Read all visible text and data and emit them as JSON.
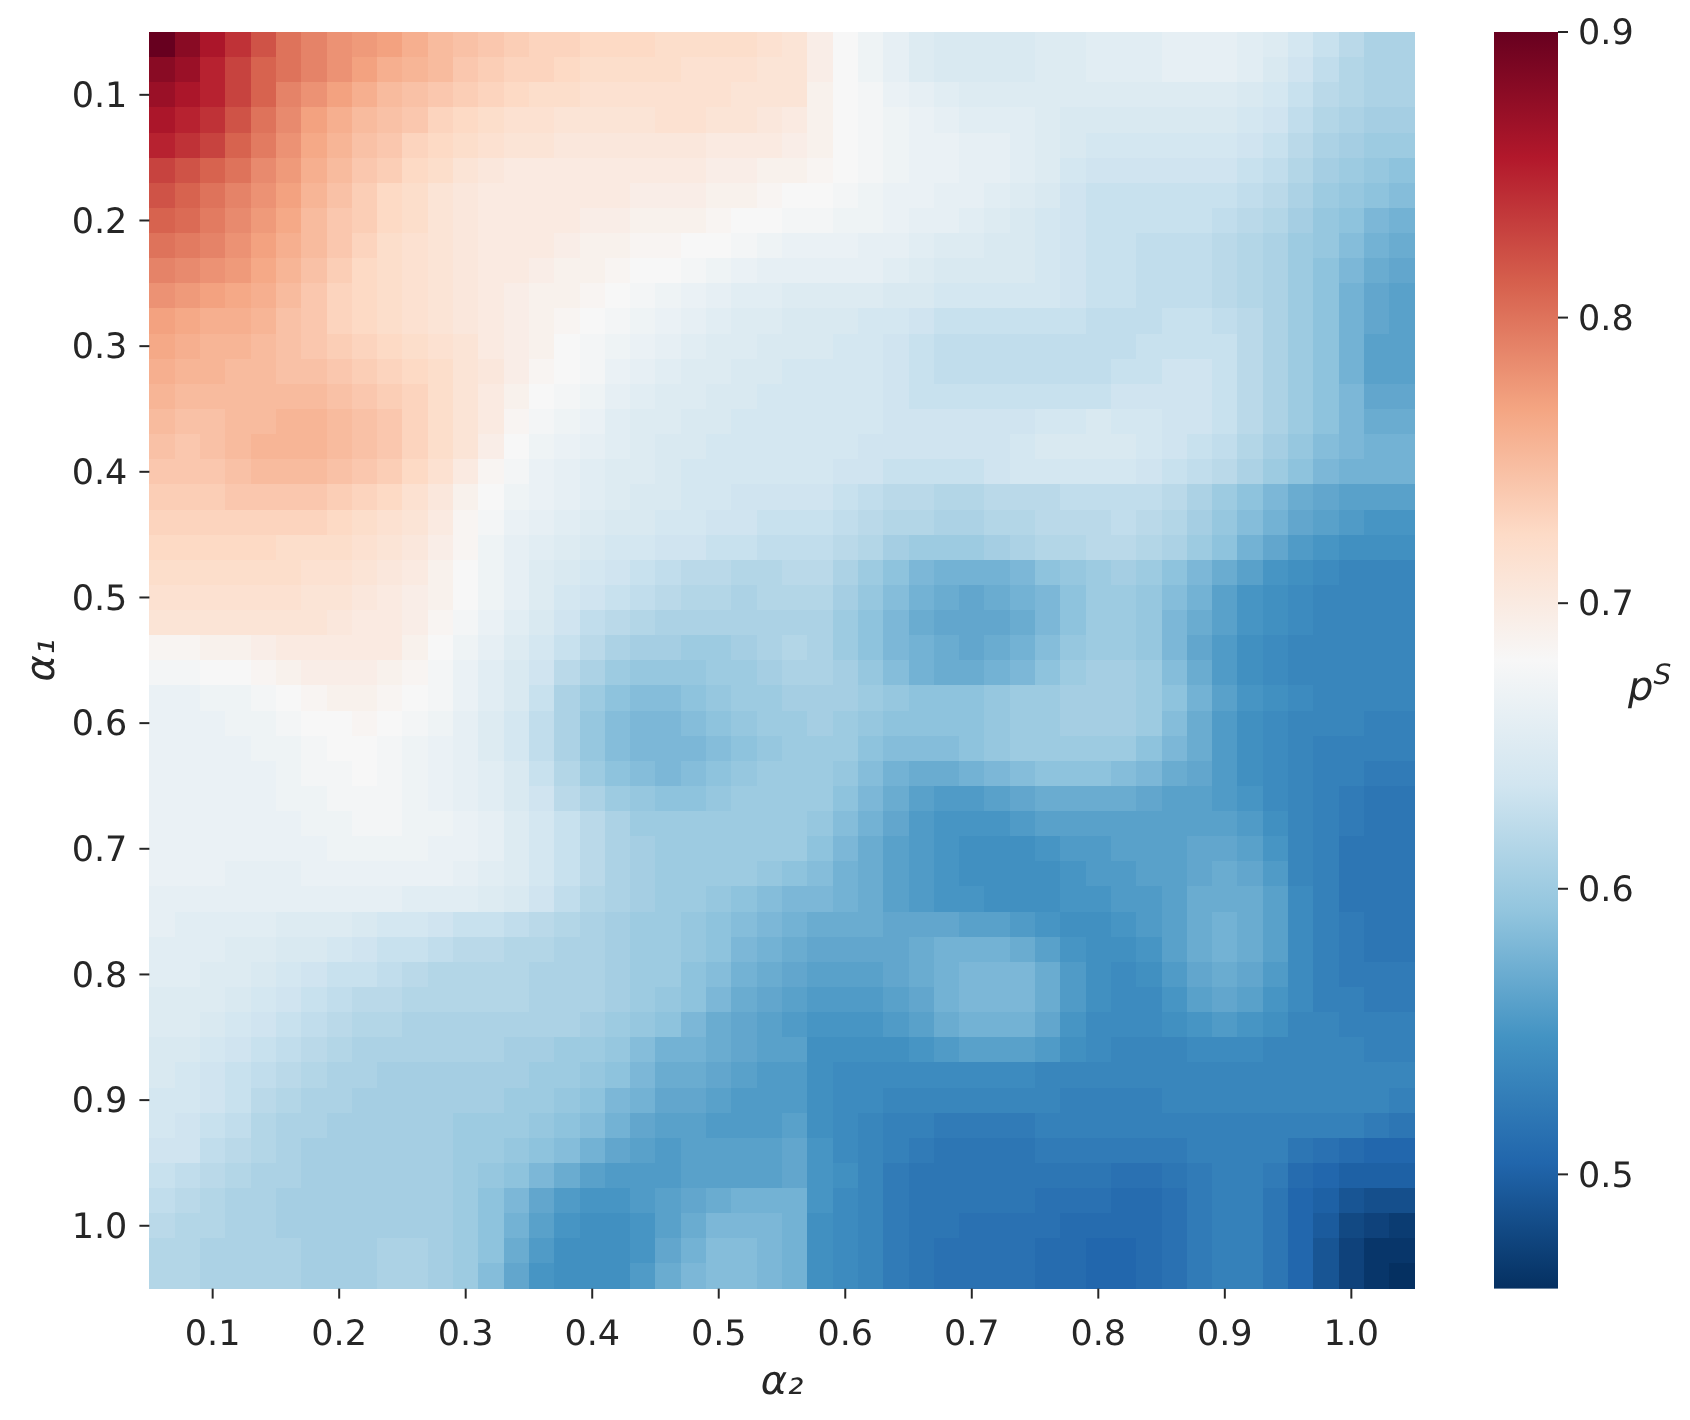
{
  "chart_data": {
    "type": "heatmap",
    "xlabel": "α₂",
    "ylabel": "α₁",
    "clabel": "p$^{S}$",
    "categories": [
      null,
      null,
      "0.1",
      null,
      null,
      null,
      null,
      "0.2",
      null,
      null,
      null,
      null,
      "0.3",
      null,
      null,
      null,
      null,
      "0.4",
      null,
      null,
      null,
      null,
      "0.5",
      null,
      null,
      null,
      null,
      "0.6",
      null,
      null,
      null,
      null,
      "0.7",
      null,
      null,
      null,
      null,
      "0.8",
      null,
      null,
      null,
      null,
      "0.9",
      null,
      null,
      null,
      null,
      "1.0",
      null,
      null
    ],
    "y_categories": [
      null,
      null,
      "0.1",
      null,
      null,
      null,
      null,
      "0.2",
      null,
      null,
      null,
      null,
      "0.3",
      null,
      null,
      null,
      null,
      "0.4",
      null,
      null,
      null,
      null,
      "0.5",
      null,
      null,
      null,
      null,
      "0.6",
      null,
      null,
      null,
      null,
      "0.7",
      null,
      null,
      null,
      null,
      "0.8",
      null,
      null,
      null,
      null,
      "0.9",
      null,
      null,
      null,
      null,
      "1.0",
      null,
      null
    ],
    "clim": [
      0.46,
      0.9
    ],
    "cticks": [
      0.5,
      0.6,
      0.7,
      0.8,
      0.9
    ],
    "cells": [
      [
        0.9,
        0.88,
        0.86,
        0.84,
        0.82,
        0.8,
        0.79,
        0.78,
        0.775,
        0.77,
        0.76,
        0.75,
        0.745,
        0.74,
        0.735,
        0.73,
        0.73,
        0.725,
        0.725,
        0.725,
        0.72,
        0.72,
        0.72,
        0.72,
        0.715,
        0.71,
        0.695,
        0.68,
        0.67,
        0.66,
        0.65,
        0.645,
        0.645,
        0.645,
        0.645,
        0.65,
        0.65,
        0.655,
        0.655,
        0.655,
        0.66,
        0.66,
        0.66,
        0.655,
        0.65,
        0.64,
        0.63,
        0.62,
        0.61,
        0.61
      ],
      [
        0.88,
        0.87,
        0.85,
        0.83,
        0.81,
        0.8,
        0.79,
        0.78,
        0.77,
        0.76,
        0.755,
        0.75,
        0.74,
        0.735,
        0.73,
        0.73,
        0.725,
        0.72,
        0.72,
        0.72,
        0.72,
        0.715,
        0.715,
        0.715,
        0.71,
        0.71,
        0.695,
        0.68,
        0.67,
        0.66,
        0.65,
        0.645,
        0.645,
        0.645,
        0.645,
        0.65,
        0.65,
        0.655,
        0.655,
        0.655,
        0.66,
        0.66,
        0.66,
        0.655,
        0.645,
        0.635,
        0.625,
        0.615,
        0.61,
        0.61
      ],
      [
        0.87,
        0.86,
        0.85,
        0.83,
        0.81,
        0.79,
        0.78,
        0.77,
        0.76,
        0.75,
        0.745,
        0.74,
        0.735,
        0.73,
        0.725,
        0.72,
        0.72,
        0.715,
        0.715,
        0.715,
        0.715,
        0.715,
        0.715,
        0.71,
        0.71,
        0.71,
        0.69,
        0.68,
        0.675,
        0.665,
        0.66,
        0.655,
        0.65,
        0.65,
        0.65,
        0.65,
        0.65,
        0.65,
        0.65,
        0.65,
        0.65,
        0.65,
        0.65,
        0.645,
        0.64,
        0.63,
        0.62,
        0.615,
        0.61,
        0.61
      ],
      [
        0.86,
        0.85,
        0.84,
        0.82,
        0.8,
        0.785,
        0.77,
        0.76,
        0.75,
        0.745,
        0.74,
        0.73,
        0.725,
        0.72,
        0.715,
        0.715,
        0.71,
        0.71,
        0.71,
        0.71,
        0.715,
        0.715,
        0.71,
        0.71,
        0.705,
        0.7,
        0.69,
        0.68,
        0.675,
        0.67,
        0.665,
        0.66,
        0.655,
        0.655,
        0.655,
        0.65,
        0.645,
        0.645,
        0.645,
        0.645,
        0.645,
        0.645,
        0.645,
        0.64,
        0.635,
        0.625,
        0.615,
        0.61,
        0.605,
        0.605
      ],
      [
        0.85,
        0.84,
        0.83,
        0.81,
        0.795,
        0.78,
        0.765,
        0.755,
        0.745,
        0.74,
        0.73,
        0.725,
        0.72,
        0.715,
        0.71,
        0.71,
        0.705,
        0.705,
        0.705,
        0.705,
        0.705,
        0.705,
        0.7,
        0.7,
        0.7,
        0.695,
        0.69,
        0.68,
        0.675,
        0.67,
        0.665,
        0.665,
        0.66,
        0.66,
        0.655,
        0.65,
        0.645,
        0.64,
        0.64,
        0.64,
        0.64,
        0.64,
        0.64,
        0.635,
        0.63,
        0.62,
        0.61,
        0.605,
        0.6,
        0.6
      ],
      [
        0.83,
        0.82,
        0.81,
        0.8,
        0.785,
        0.775,
        0.76,
        0.75,
        0.74,
        0.735,
        0.725,
        0.72,
        0.71,
        0.705,
        0.7,
        0.7,
        0.7,
        0.7,
        0.7,
        0.7,
        0.7,
        0.7,
        0.695,
        0.695,
        0.69,
        0.69,
        0.685,
        0.68,
        0.675,
        0.67,
        0.665,
        0.665,
        0.66,
        0.66,
        0.655,
        0.65,
        0.64,
        0.635,
        0.635,
        0.635,
        0.635,
        0.635,
        0.635,
        0.63,
        0.625,
        0.615,
        0.605,
        0.6,
        0.595,
        0.59
      ],
      [
        0.82,
        0.81,
        0.8,
        0.79,
        0.78,
        0.77,
        0.755,
        0.745,
        0.735,
        0.725,
        0.72,
        0.71,
        0.705,
        0.7,
        0.7,
        0.7,
        0.7,
        0.7,
        0.7,
        0.695,
        0.695,
        0.695,
        0.69,
        0.69,
        0.685,
        0.68,
        0.68,
        0.675,
        0.67,
        0.665,
        0.665,
        0.66,
        0.66,
        0.655,
        0.65,
        0.645,
        0.635,
        0.63,
        0.63,
        0.63,
        0.63,
        0.63,
        0.63,
        0.625,
        0.62,
        0.61,
        0.6,
        0.595,
        0.59,
        0.585
      ],
      [
        0.81,
        0.805,
        0.795,
        0.785,
        0.775,
        0.765,
        0.75,
        0.74,
        0.735,
        0.725,
        0.72,
        0.71,
        0.705,
        0.7,
        0.7,
        0.7,
        0.7,
        0.695,
        0.695,
        0.69,
        0.69,
        0.69,
        0.685,
        0.68,
        0.68,
        0.675,
        0.675,
        0.67,
        0.67,
        0.665,
        0.66,
        0.66,
        0.655,
        0.65,
        0.645,
        0.64,
        0.635,
        0.63,
        0.63,
        0.63,
        0.63,
        0.63,
        0.625,
        0.62,
        0.615,
        0.605,
        0.595,
        0.59,
        0.58,
        0.575
      ],
      [
        0.8,
        0.795,
        0.79,
        0.78,
        0.77,
        0.76,
        0.75,
        0.74,
        0.73,
        0.72,
        0.715,
        0.71,
        0.705,
        0.7,
        0.7,
        0.7,
        0.695,
        0.69,
        0.69,
        0.685,
        0.685,
        0.68,
        0.68,
        0.675,
        0.67,
        0.665,
        0.665,
        0.665,
        0.66,
        0.66,
        0.655,
        0.65,
        0.65,
        0.645,
        0.645,
        0.64,
        0.635,
        0.63,
        0.63,
        0.625,
        0.625,
        0.625,
        0.62,
        0.615,
        0.61,
        0.6,
        0.595,
        0.585,
        0.575,
        0.57
      ],
      [
        0.79,
        0.785,
        0.78,
        0.775,
        0.765,
        0.755,
        0.745,
        0.735,
        0.725,
        0.72,
        0.715,
        0.71,
        0.705,
        0.7,
        0.7,
        0.695,
        0.69,
        0.69,
        0.685,
        0.68,
        0.68,
        0.675,
        0.67,
        0.665,
        0.66,
        0.66,
        0.66,
        0.66,
        0.66,
        0.655,
        0.65,
        0.645,
        0.645,
        0.645,
        0.645,
        0.64,
        0.635,
        0.63,
        0.63,
        0.625,
        0.625,
        0.625,
        0.62,
        0.615,
        0.61,
        0.6,
        0.59,
        0.58,
        0.57,
        0.565
      ],
      [
        0.78,
        0.775,
        0.77,
        0.765,
        0.76,
        0.75,
        0.74,
        0.73,
        0.725,
        0.72,
        0.715,
        0.71,
        0.705,
        0.7,
        0.695,
        0.69,
        0.69,
        0.685,
        0.68,
        0.675,
        0.67,
        0.665,
        0.66,
        0.655,
        0.655,
        0.65,
        0.65,
        0.65,
        0.65,
        0.645,
        0.645,
        0.64,
        0.64,
        0.64,
        0.64,
        0.64,
        0.635,
        0.63,
        0.63,
        0.625,
        0.625,
        0.625,
        0.62,
        0.615,
        0.61,
        0.6,
        0.59,
        0.575,
        0.565,
        0.56
      ],
      [
        0.77,
        0.765,
        0.76,
        0.76,
        0.755,
        0.745,
        0.74,
        0.73,
        0.725,
        0.72,
        0.715,
        0.71,
        0.705,
        0.7,
        0.695,
        0.69,
        0.685,
        0.68,
        0.675,
        0.67,
        0.665,
        0.66,
        0.655,
        0.65,
        0.65,
        0.645,
        0.645,
        0.645,
        0.64,
        0.64,
        0.635,
        0.63,
        0.63,
        0.63,
        0.63,
        0.63,
        0.63,
        0.625,
        0.625,
        0.625,
        0.63,
        0.63,
        0.625,
        0.62,
        0.61,
        0.6,
        0.59,
        0.575,
        0.565,
        0.56
      ],
      [
        0.765,
        0.76,
        0.755,
        0.755,
        0.75,
        0.745,
        0.74,
        0.735,
        0.73,
        0.725,
        0.72,
        0.715,
        0.71,
        0.7,
        0.695,
        0.69,
        0.68,
        0.675,
        0.67,
        0.665,
        0.66,
        0.655,
        0.65,
        0.65,
        0.645,
        0.645,
        0.645,
        0.64,
        0.64,
        0.635,
        0.63,
        0.625,
        0.625,
        0.625,
        0.625,
        0.625,
        0.625,
        0.625,
        0.625,
        0.63,
        0.63,
        0.63,
        0.63,
        0.62,
        0.61,
        0.6,
        0.59,
        0.575,
        0.56,
        0.56
      ],
      [
        0.76,
        0.755,
        0.755,
        0.75,
        0.75,
        0.745,
        0.745,
        0.74,
        0.735,
        0.73,
        0.725,
        0.72,
        0.71,
        0.705,
        0.695,
        0.685,
        0.68,
        0.675,
        0.665,
        0.66,
        0.655,
        0.65,
        0.65,
        0.645,
        0.645,
        0.64,
        0.64,
        0.64,
        0.64,
        0.635,
        0.63,
        0.625,
        0.625,
        0.625,
        0.625,
        0.625,
        0.625,
        0.625,
        0.63,
        0.63,
        0.635,
        0.635,
        0.63,
        0.62,
        0.61,
        0.6,
        0.59,
        0.575,
        0.56,
        0.56
      ],
      [
        0.755,
        0.75,
        0.75,
        0.75,
        0.75,
        0.75,
        0.75,
        0.745,
        0.74,
        0.735,
        0.73,
        0.72,
        0.71,
        0.7,
        0.69,
        0.68,
        0.675,
        0.67,
        0.66,
        0.655,
        0.65,
        0.65,
        0.645,
        0.645,
        0.64,
        0.64,
        0.64,
        0.64,
        0.64,
        0.635,
        0.63,
        0.63,
        0.63,
        0.63,
        0.63,
        0.63,
        0.63,
        0.63,
        0.635,
        0.635,
        0.635,
        0.635,
        0.63,
        0.62,
        0.61,
        0.6,
        0.59,
        0.58,
        0.565,
        0.565
      ],
      [
        0.75,
        0.745,
        0.745,
        0.75,
        0.75,
        0.755,
        0.755,
        0.75,
        0.745,
        0.74,
        0.73,
        0.72,
        0.71,
        0.7,
        0.685,
        0.675,
        0.67,
        0.665,
        0.655,
        0.65,
        0.65,
        0.645,
        0.645,
        0.64,
        0.64,
        0.64,
        0.64,
        0.64,
        0.64,
        0.635,
        0.635,
        0.635,
        0.635,
        0.635,
        0.635,
        0.64,
        0.64,
        0.645,
        0.64,
        0.64,
        0.635,
        0.635,
        0.63,
        0.62,
        0.61,
        0.6,
        0.59,
        0.58,
        0.57,
        0.57
      ],
      [
        0.745,
        0.74,
        0.745,
        0.75,
        0.755,
        0.755,
        0.755,
        0.75,
        0.745,
        0.74,
        0.73,
        0.72,
        0.71,
        0.695,
        0.68,
        0.67,
        0.665,
        0.66,
        0.655,
        0.65,
        0.645,
        0.645,
        0.64,
        0.64,
        0.64,
        0.64,
        0.64,
        0.64,
        0.635,
        0.635,
        0.635,
        0.635,
        0.635,
        0.635,
        0.64,
        0.645,
        0.645,
        0.645,
        0.645,
        0.64,
        0.635,
        0.63,
        0.625,
        0.615,
        0.605,
        0.595,
        0.585,
        0.58,
        0.575,
        0.575
      ],
      [
        0.74,
        0.74,
        0.74,
        0.745,
        0.75,
        0.75,
        0.75,
        0.745,
        0.74,
        0.735,
        0.725,
        0.715,
        0.7,
        0.685,
        0.675,
        0.665,
        0.66,
        0.655,
        0.65,
        0.65,
        0.645,
        0.64,
        0.64,
        0.64,
        0.64,
        0.64,
        0.64,
        0.635,
        0.635,
        0.63,
        0.63,
        0.63,
        0.63,
        0.635,
        0.64,
        0.64,
        0.64,
        0.64,
        0.64,
        0.635,
        0.63,
        0.625,
        0.62,
        0.61,
        0.6,
        0.59,
        0.58,
        0.575,
        0.575,
        0.575
      ],
      [
        0.735,
        0.735,
        0.735,
        0.74,
        0.74,
        0.74,
        0.74,
        0.735,
        0.73,
        0.725,
        0.715,
        0.705,
        0.69,
        0.68,
        0.67,
        0.665,
        0.66,
        0.655,
        0.65,
        0.645,
        0.645,
        0.64,
        0.64,
        0.635,
        0.635,
        0.635,
        0.635,
        0.63,
        0.625,
        0.62,
        0.62,
        0.615,
        0.615,
        0.62,
        0.62,
        0.62,
        0.625,
        0.625,
        0.625,
        0.625,
        0.62,
        0.61,
        0.6,
        0.59,
        0.58,
        0.57,
        0.565,
        0.56,
        0.56,
        0.56
      ],
      [
        0.73,
        0.73,
        0.73,
        0.73,
        0.73,
        0.73,
        0.73,
        0.725,
        0.72,
        0.715,
        0.71,
        0.7,
        0.685,
        0.675,
        0.665,
        0.66,
        0.655,
        0.65,
        0.645,
        0.645,
        0.64,
        0.64,
        0.635,
        0.635,
        0.63,
        0.63,
        0.63,
        0.625,
        0.62,
        0.615,
        0.615,
        0.61,
        0.61,
        0.615,
        0.615,
        0.62,
        0.62,
        0.62,
        0.625,
        0.62,
        0.615,
        0.605,
        0.595,
        0.585,
        0.575,
        0.565,
        0.56,
        0.555,
        0.55,
        0.55
      ],
      [
        0.725,
        0.725,
        0.725,
        0.725,
        0.725,
        0.72,
        0.72,
        0.72,
        0.715,
        0.71,
        0.705,
        0.695,
        0.685,
        0.67,
        0.66,
        0.655,
        0.65,
        0.645,
        0.64,
        0.64,
        0.635,
        0.635,
        0.63,
        0.63,
        0.625,
        0.625,
        0.625,
        0.62,
        0.615,
        0.605,
        0.6,
        0.6,
        0.6,
        0.605,
        0.61,
        0.615,
        0.615,
        0.62,
        0.62,
        0.615,
        0.61,
        0.6,
        0.59,
        0.575,
        0.565,
        0.555,
        0.55,
        0.545,
        0.545,
        0.545
      ],
      [
        0.72,
        0.72,
        0.72,
        0.72,
        0.72,
        0.72,
        0.715,
        0.715,
        0.71,
        0.705,
        0.7,
        0.69,
        0.68,
        0.67,
        0.66,
        0.65,
        0.645,
        0.64,
        0.635,
        0.63,
        0.625,
        0.62,
        0.62,
        0.615,
        0.615,
        0.62,
        0.62,
        0.61,
        0.6,
        0.59,
        0.58,
        0.575,
        0.575,
        0.575,
        0.58,
        0.59,
        0.595,
        0.6,
        0.605,
        0.6,
        0.59,
        0.58,
        0.57,
        0.56,
        0.55,
        0.545,
        0.54,
        0.535,
        0.535,
        0.535
      ],
      [
        0.715,
        0.715,
        0.715,
        0.715,
        0.715,
        0.715,
        0.71,
        0.71,
        0.705,
        0.7,
        0.695,
        0.69,
        0.68,
        0.67,
        0.66,
        0.65,
        0.64,
        0.635,
        0.63,
        0.625,
        0.62,
        0.615,
        0.615,
        0.61,
        0.615,
        0.615,
        0.615,
        0.605,
        0.595,
        0.585,
        0.575,
        0.57,
        0.565,
        0.57,
        0.575,
        0.58,
        0.59,
        0.6,
        0.6,
        0.595,
        0.585,
        0.575,
        0.56,
        0.55,
        0.545,
        0.54,
        0.535,
        0.535,
        0.535,
        0.535
      ],
      [
        0.71,
        0.71,
        0.71,
        0.71,
        0.71,
        0.71,
        0.71,
        0.705,
        0.7,
        0.7,
        0.695,
        0.685,
        0.675,
        0.665,
        0.655,
        0.645,
        0.635,
        0.625,
        0.62,
        0.615,
        0.61,
        0.61,
        0.61,
        0.61,
        0.61,
        0.61,
        0.61,
        0.6,
        0.59,
        0.58,
        0.57,
        0.565,
        0.565,
        0.565,
        0.57,
        0.58,
        0.59,
        0.6,
        0.6,
        0.595,
        0.58,
        0.57,
        0.56,
        0.55,
        0.545,
        0.54,
        0.535,
        0.535,
        0.535,
        0.535
      ],
      [
        0.685,
        0.685,
        0.69,
        0.69,
        0.695,
        0.7,
        0.7,
        0.7,
        0.7,
        0.7,
        0.69,
        0.68,
        0.67,
        0.66,
        0.65,
        0.64,
        0.63,
        0.62,
        0.61,
        0.605,
        0.605,
        0.6,
        0.6,
        0.605,
        0.61,
        0.615,
        0.61,
        0.6,
        0.59,
        0.58,
        0.575,
        0.57,
        0.565,
        0.57,
        0.575,
        0.585,
        0.595,
        0.6,
        0.6,
        0.595,
        0.58,
        0.565,
        0.555,
        0.545,
        0.54,
        0.535,
        0.535,
        0.535,
        0.535,
        0.535
      ],
      [
        0.675,
        0.675,
        0.68,
        0.68,
        0.685,
        0.69,
        0.695,
        0.695,
        0.695,
        0.69,
        0.685,
        0.675,
        0.665,
        0.655,
        0.645,
        0.635,
        0.62,
        0.61,
        0.6,
        0.595,
        0.595,
        0.595,
        0.6,
        0.6,
        0.605,
        0.61,
        0.61,
        0.605,
        0.595,
        0.585,
        0.575,
        0.57,
        0.57,
        0.575,
        0.58,
        0.59,
        0.6,
        0.605,
        0.605,
        0.6,
        0.585,
        0.57,
        0.555,
        0.545,
        0.54,
        0.535,
        0.535,
        0.535,
        0.535,
        0.535
      ],
      [
        0.665,
        0.665,
        0.67,
        0.67,
        0.675,
        0.68,
        0.685,
        0.69,
        0.69,
        0.685,
        0.68,
        0.675,
        0.665,
        0.655,
        0.645,
        0.63,
        0.61,
        0.6,
        0.59,
        0.585,
        0.585,
        0.59,
        0.595,
        0.6,
        0.6,
        0.605,
        0.605,
        0.605,
        0.6,
        0.595,
        0.59,
        0.59,
        0.59,
        0.595,
        0.6,
        0.6,
        0.605,
        0.605,
        0.605,
        0.6,
        0.59,
        0.575,
        0.56,
        0.55,
        0.545,
        0.54,
        0.535,
        0.535,
        0.535,
        0.535
      ],
      [
        0.665,
        0.665,
        0.665,
        0.67,
        0.67,
        0.675,
        0.68,
        0.68,
        0.685,
        0.68,
        0.675,
        0.67,
        0.66,
        0.65,
        0.64,
        0.625,
        0.61,
        0.595,
        0.585,
        0.58,
        0.58,
        0.585,
        0.59,
        0.595,
        0.6,
        0.6,
        0.605,
        0.6,
        0.595,
        0.59,
        0.59,
        0.59,
        0.59,
        0.595,
        0.6,
        0.6,
        0.605,
        0.605,
        0.605,
        0.6,
        0.585,
        0.57,
        0.555,
        0.545,
        0.54,
        0.535,
        0.535,
        0.535,
        0.53,
        0.53
      ],
      [
        0.665,
        0.665,
        0.665,
        0.665,
        0.67,
        0.67,
        0.675,
        0.68,
        0.68,
        0.675,
        0.67,
        0.665,
        0.66,
        0.65,
        0.64,
        0.625,
        0.61,
        0.595,
        0.585,
        0.58,
        0.58,
        0.58,
        0.585,
        0.59,
        0.595,
        0.6,
        0.6,
        0.6,
        0.59,
        0.585,
        0.585,
        0.585,
        0.59,
        0.595,
        0.6,
        0.6,
        0.6,
        0.6,
        0.6,
        0.59,
        0.58,
        0.57,
        0.555,
        0.545,
        0.54,
        0.535,
        0.53,
        0.53,
        0.53,
        0.53
      ],
      [
        0.665,
        0.665,
        0.665,
        0.665,
        0.665,
        0.67,
        0.675,
        0.675,
        0.68,
        0.675,
        0.67,
        0.665,
        0.66,
        0.655,
        0.645,
        0.63,
        0.615,
        0.6,
        0.59,
        0.585,
        0.58,
        0.585,
        0.59,
        0.595,
        0.6,
        0.6,
        0.6,
        0.595,
        0.585,
        0.575,
        0.57,
        0.57,
        0.575,
        0.58,
        0.585,
        0.59,
        0.59,
        0.59,
        0.585,
        0.58,
        0.57,
        0.565,
        0.555,
        0.545,
        0.54,
        0.535,
        0.53,
        0.53,
        0.525,
        0.525
      ],
      [
        0.665,
        0.665,
        0.665,
        0.665,
        0.665,
        0.67,
        0.67,
        0.675,
        0.675,
        0.675,
        0.67,
        0.665,
        0.66,
        0.655,
        0.645,
        0.635,
        0.62,
        0.61,
        0.6,
        0.595,
        0.59,
        0.59,
        0.595,
        0.6,
        0.6,
        0.6,
        0.6,
        0.59,
        0.58,
        0.57,
        0.56,
        0.555,
        0.555,
        0.56,
        0.565,
        0.57,
        0.57,
        0.57,
        0.57,
        0.565,
        0.56,
        0.56,
        0.555,
        0.55,
        0.54,
        0.535,
        0.53,
        0.525,
        0.52,
        0.52
      ],
      [
        0.665,
        0.665,
        0.665,
        0.665,
        0.665,
        0.665,
        0.67,
        0.67,
        0.675,
        0.675,
        0.67,
        0.67,
        0.665,
        0.66,
        0.65,
        0.64,
        0.63,
        0.62,
        0.61,
        0.6,
        0.6,
        0.6,
        0.6,
        0.6,
        0.6,
        0.6,
        0.595,
        0.585,
        0.575,
        0.565,
        0.555,
        0.55,
        0.55,
        0.55,
        0.555,
        0.56,
        0.56,
        0.56,
        0.56,
        0.56,
        0.56,
        0.56,
        0.56,
        0.555,
        0.545,
        0.535,
        0.53,
        0.525,
        0.52,
        0.52
      ],
      [
        0.665,
        0.665,
        0.665,
        0.665,
        0.665,
        0.665,
        0.665,
        0.67,
        0.67,
        0.67,
        0.67,
        0.665,
        0.665,
        0.66,
        0.65,
        0.64,
        0.63,
        0.62,
        0.61,
        0.605,
        0.6,
        0.6,
        0.6,
        0.6,
        0.6,
        0.6,
        0.59,
        0.58,
        0.57,
        0.56,
        0.555,
        0.55,
        0.545,
        0.545,
        0.545,
        0.55,
        0.555,
        0.555,
        0.56,
        0.56,
        0.56,
        0.565,
        0.565,
        0.56,
        0.55,
        0.535,
        0.53,
        0.52,
        0.52,
        0.52
      ],
      [
        0.665,
        0.665,
        0.665,
        0.66,
        0.66,
        0.66,
        0.665,
        0.665,
        0.665,
        0.665,
        0.665,
        0.665,
        0.66,
        0.655,
        0.65,
        0.64,
        0.63,
        0.62,
        0.61,
        0.605,
        0.6,
        0.6,
        0.6,
        0.6,
        0.595,
        0.59,
        0.585,
        0.575,
        0.57,
        0.56,
        0.555,
        0.55,
        0.545,
        0.545,
        0.545,
        0.545,
        0.55,
        0.555,
        0.555,
        0.56,
        0.56,
        0.565,
        0.57,
        0.565,
        0.555,
        0.535,
        0.53,
        0.52,
        0.52,
        0.52
      ],
      [
        0.66,
        0.66,
        0.66,
        0.66,
        0.66,
        0.66,
        0.66,
        0.66,
        0.66,
        0.66,
        0.655,
        0.655,
        0.655,
        0.65,
        0.645,
        0.635,
        0.625,
        0.615,
        0.61,
        0.605,
        0.6,
        0.6,
        0.595,
        0.59,
        0.585,
        0.58,
        0.58,
        0.575,
        0.57,
        0.56,
        0.555,
        0.55,
        0.55,
        0.545,
        0.545,
        0.545,
        0.55,
        0.55,
        0.555,
        0.555,
        0.56,
        0.57,
        0.57,
        0.57,
        0.56,
        0.54,
        0.53,
        0.52,
        0.52,
        0.52
      ],
      [
        0.66,
        0.655,
        0.655,
        0.655,
        0.655,
        0.65,
        0.65,
        0.65,
        0.645,
        0.64,
        0.64,
        0.635,
        0.63,
        0.63,
        0.625,
        0.62,
        0.615,
        0.61,
        0.605,
        0.6,
        0.6,
        0.595,
        0.59,
        0.585,
        0.58,
        0.575,
        0.57,
        0.57,
        0.57,
        0.565,
        0.565,
        0.565,
        0.56,
        0.56,
        0.555,
        0.55,
        0.545,
        0.545,
        0.55,
        0.555,
        0.56,
        0.57,
        0.575,
        0.57,
        0.56,
        0.54,
        0.53,
        0.525,
        0.52,
        0.52
      ],
      [
        0.655,
        0.655,
        0.655,
        0.65,
        0.65,
        0.645,
        0.645,
        0.64,
        0.635,
        0.63,
        0.63,
        0.625,
        0.62,
        0.62,
        0.615,
        0.615,
        0.61,
        0.61,
        0.605,
        0.6,
        0.6,
        0.595,
        0.59,
        0.58,
        0.575,
        0.57,
        0.565,
        0.565,
        0.565,
        0.565,
        0.57,
        0.575,
        0.575,
        0.575,
        0.57,
        0.56,
        0.55,
        0.545,
        0.545,
        0.55,
        0.56,
        0.57,
        0.575,
        0.57,
        0.56,
        0.54,
        0.53,
        0.525,
        0.52,
        0.52
      ],
      [
        0.655,
        0.655,
        0.65,
        0.65,
        0.645,
        0.64,
        0.635,
        0.63,
        0.63,
        0.625,
        0.62,
        0.615,
        0.615,
        0.615,
        0.615,
        0.61,
        0.61,
        0.61,
        0.605,
        0.6,
        0.6,
        0.59,
        0.585,
        0.575,
        0.57,
        0.565,
        0.56,
        0.56,
        0.56,
        0.565,
        0.57,
        0.575,
        0.58,
        0.58,
        0.58,
        0.57,
        0.555,
        0.545,
        0.54,
        0.545,
        0.555,
        0.565,
        0.57,
        0.565,
        0.555,
        0.54,
        0.53,
        0.525,
        0.525,
        0.525
      ],
      [
        0.65,
        0.65,
        0.65,
        0.645,
        0.64,
        0.635,
        0.63,
        0.625,
        0.62,
        0.62,
        0.615,
        0.615,
        0.615,
        0.615,
        0.615,
        0.61,
        0.61,
        0.61,
        0.605,
        0.6,
        0.595,
        0.59,
        0.58,
        0.57,
        0.565,
        0.56,
        0.555,
        0.555,
        0.555,
        0.56,
        0.565,
        0.575,
        0.58,
        0.58,
        0.58,
        0.57,
        0.555,
        0.545,
        0.54,
        0.54,
        0.55,
        0.56,
        0.565,
        0.56,
        0.55,
        0.54,
        0.53,
        0.53,
        0.525,
        0.525
      ],
      [
        0.65,
        0.65,
        0.645,
        0.64,
        0.635,
        0.63,
        0.625,
        0.62,
        0.615,
        0.615,
        0.61,
        0.61,
        0.61,
        0.61,
        0.61,
        0.61,
        0.61,
        0.605,
        0.6,
        0.595,
        0.59,
        0.58,
        0.57,
        0.565,
        0.56,
        0.555,
        0.55,
        0.55,
        0.55,
        0.555,
        0.56,
        0.57,
        0.575,
        0.575,
        0.575,
        0.565,
        0.55,
        0.54,
        0.54,
        0.54,
        0.545,
        0.55,
        0.555,
        0.55,
        0.545,
        0.535,
        0.535,
        0.53,
        0.53,
        0.53
      ],
      [
        0.645,
        0.645,
        0.64,
        0.635,
        0.63,
        0.625,
        0.62,
        0.615,
        0.61,
        0.61,
        0.61,
        0.61,
        0.61,
        0.61,
        0.605,
        0.605,
        0.6,
        0.6,
        0.595,
        0.585,
        0.575,
        0.575,
        0.57,
        0.565,
        0.56,
        0.56,
        0.545,
        0.545,
        0.545,
        0.545,
        0.55,
        0.555,
        0.56,
        0.56,
        0.56,
        0.555,
        0.545,
        0.54,
        0.535,
        0.535,
        0.535,
        0.54,
        0.54,
        0.54,
        0.535,
        0.535,
        0.535,
        0.535,
        0.53,
        0.53
      ],
      [
        0.645,
        0.64,
        0.635,
        0.63,
        0.625,
        0.62,
        0.615,
        0.61,
        0.61,
        0.605,
        0.605,
        0.605,
        0.605,
        0.605,
        0.605,
        0.6,
        0.6,
        0.595,
        0.59,
        0.58,
        0.57,
        0.57,
        0.565,
        0.56,
        0.555,
        0.555,
        0.545,
        0.54,
        0.54,
        0.54,
        0.54,
        0.54,
        0.54,
        0.54,
        0.54,
        0.535,
        0.535,
        0.535,
        0.535,
        0.535,
        0.535,
        0.535,
        0.535,
        0.535,
        0.535,
        0.535,
        0.535,
        0.535,
        0.535,
        0.535
      ],
      [
        0.64,
        0.64,
        0.635,
        0.63,
        0.62,
        0.615,
        0.61,
        0.61,
        0.605,
        0.605,
        0.605,
        0.605,
        0.605,
        0.605,
        0.6,
        0.6,
        0.595,
        0.59,
        0.58,
        0.575,
        0.565,
        0.565,
        0.56,
        0.555,
        0.555,
        0.555,
        0.545,
        0.54,
        0.54,
        0.535,
        0.535,
        0.535,
        0.535,
        0.535,
        0.535,
        0.535,
        0.53,
        0.53,
        0.53,
        0.53,
        0.535,
        0.535,
        0.535,
        0.535,
        0.535,
        0.535,
        0.535,
        0.535,
        0.535,
        0.53
      ],
      [
        0.64,
        0.635,
        0.63,
        0.625,
        0.615,
        0.61,
        0.61,
        0.605,
        0.605,
        0.605,
        0.605,
        0.605,
        0.6,
        0.6,
        0.6,
        0.595,
        0.59,
        0.585,
        0.575,
        0.565,
        0.56,
        0.56,
        0.555,
        0.555,
        0.555,
        0.56,
        0.545,
        0.54,
        0.535,
        0.53,
        0.53,
        0.525,
        0.525,
        0.525,
        0.525,
        0.53,
        0.53,
        0.53,
        0.53,
        0.53,
        0.53,
        0.53,
        0.53,
        0.53,
        0.53,
        0.53,
        0.53,
        0.53,
        0.525,
        0.52
      ],
      [
        0.635,
        0.635,
        0.625,
        0.62,
        0.615,
        0.61,
        0.605,
        0.605,
        0.605,
        0.605,
        0.605,
        0.605,
        0.6,
        0.6,
        0.595,
        0.59,
        0.585,
        0.575,
        0.565,
        0.56,
        0.555,
        0.56,
        0.56,
        0.56,
        0.56,
        0.565,
        0.55,
        0.54,
        0.535,
        0.53,
        0.525,
        0.52,
        0.52,
        0.52,
        0.52,
        0.525,
        0.525,
        0.525,
        0.525,
        0.525,
        0.525,
        0.53,
        0.53,
        0.53,
        0.53,
        0.52,
        0.515,
        0.51,
        0.505,
        0.505
      ],
      [
        0.63,
        0.625,
        0.62,
        0.615,
        0.61,
        0.61,
        0.605,
        0.605,
        0.605,
        0.605,
        0.605,
        0.605,
        0.6,
        0.595,
        0.59,
        0.58,
        0.57,
        0.56,
        0.555,
        0.555,
        0.555,
        0.56,
        0.56,
        0.56,
        0.56,
        0.565,
        0.55,
        0.545,
        0.535,
        0.525,
        0.52,
        0.52,
        0.52,
        0.52,
        0.52,
        0.52,
        0.52,
        0.52,
        0.515,
        0.515,
        0.52,
        0.525,
        0.53,
        0.53,
        0.525,
        0.51,
        0.505,
        0.5,
        0.5,
        0.5
      ],
      [
        0.625,
        0.62,
        0.615,
        0.61,
        0.61,
        0.605,
        0.605,
        0.605,
        0.605,
        0.605,
        0.605,
        0.605,
        0.6,
        0.59,
        0.58,
        0.565,
        0.555,
        0.55,
        0.55,
        0.555,
        0.56,
        0.565,
        0.57,
        0.575,
        0.575,
        0.575,
        0.55,
        0.54,
        0.535,
        0.525,
        0.52,
        0.52,
        0.52,
        0.52,
        0.52,
        0.515,
        0.515,
        0.515,
        0.51,
        0.51,
        0.515,
        0.525,
        0.53,
        0.53,
        0.52,
        0.505,
        0.5,
        0.49,
        0.485,
        0.485
      ],
      [
        0.62,
        0.615,
        0.615,
        0.61,
        0.61,
        0.605,
        0.605,
        0.605,
        0.605,
        0.605,
        0.605,
        0.605,
        0.6,
        0.59,
        0.575,
        0.56,
        0.55,
        0.545,
        0.545,
        0.55,
        0.56,
        0.57,
        0.58,
        0.58,
        0.58,
        0.575,
        0.545,
        0.54,
        0.535,
        0.525,
        0.52,
        0.52,
        0.515,
        0.515,
        0.515,
        0.515,
        0.51,
        0.51,
        0.51,
        0.51,
        0.515,
        0.525,
        0.53,
        0.53,
        0.52,
        0.505,
        0.495,
        0.48,
        0.475,
        0.47
      ],
      [
        0.615,
        0.615,
        0.61,
        0.61,
        0.61,
        0.61,
        0.605,
        0.605,
        0.605,
        0.61,
        0.61,
        0.605,
        0.6,
        0.59,
        0.57,
        0.555,
        0.545,
        0.545,
        0.545,
        0.55,
        0.565,
        0.575,
        0.585,
        0.585,
        0.58,
        0.575,
        0.545,
        0.54,
        0.535,
        0.525,
        0.52,
        0.515,
        0.515,
        0.515,
        0.515,
        0.51,
        0.51,
        0.505,
        0.505,
        0.51,
        0.515,
        0.525,
        0.53,
        0.53,
        0.52,
        0.505,
        0.49,
        0.475,
        0.465,
        0.465
      ],
      [
        0.615,
        0.615,
        0.61,
        0.61,
        0.61,
        0.61,
        0.605,
        0.605,
        0.605,
        0.61,
        0.61,
        0.605,
        0.6,
        0.585,
        0.565,
        0.55,
        0.545,
        0.545,
        0.545,
        0.555,
        0.57,
        0.58,
        0.585,
        0.585,
        0.58,
        0.575,
        0.545,
        0.54,
        0.535,
        0.525,
        0.52,
        0.515,
        0.515,
        0.515,
        0.515,
        0.51,
        0.51,
        0.505,
        0.505,
        0.51,
        0.515,
        0.525,
        0.53,
        0.53,
        0.52,
        0.505,
        0.49,
        0.475,
        0.465,
        0.46
      ]
    ]
  }
}
